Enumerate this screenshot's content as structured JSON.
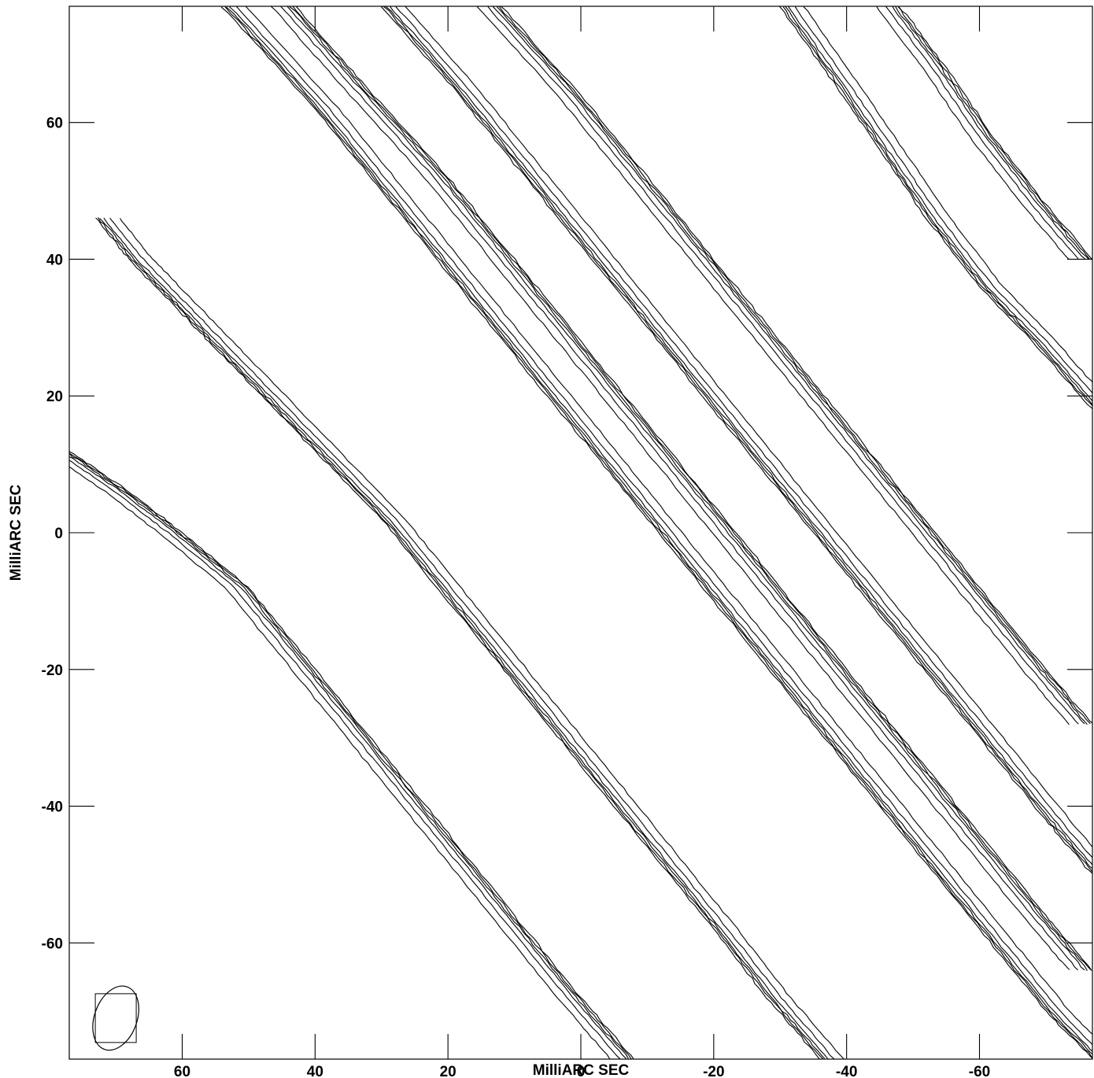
{
  "chart_data": {
    "type": "contour",
    "xlabel": "MilliARC SEC",
    "ylabel": "MilliARC SEC",
    "xlim": [
      77,
      -77
    ],
    "ylim": [
      -77,
      77
    ],
    "x_ticks": [
      60,
      40,
      20,
      0,
      -20,
      -40,
      -60
    ],
    "x_tick_labels": [
      "60",
      "40",
      "20",
      "0",
      "-20",
      "-40",
      "-60"
    ],
    "y_ticks": [
      60,
      40,
      20,
      0,
      -20,
      -40,
      -60
    ],
    "y_tick_labels": [
      "60",
      "40",
      "20",
      "0",
      "-20",
      "-40",
      "-60"
    ],
    "grid": false,
    "beam": {
      "x": 70,
      "y": -71,
      "major_axis": 5,
      "minor_axis": 3.2,
      "position_angle_deg": 20
    },
    "contour_bands": [
      {
        "name": "band-1",
        "edges": [
          [
            [
              54,
              77
            ],
            [
              40,
              62
            ],
            [
              30,
              50
            ],
            [
              20,
              38
            ],
            [
              10,
              26
            ],
            [
              0,
              14
            ],
            [
              -10,
              2
            ],
            [
              -20,
              -10
            ],
            [
              -30,
              -22
            ],
            [
              -40,
              -34
            ],
            [
              -50,
              -46
            ],
            [
              -60,
              -58
            ],
            [
              -70,
              -70
            ],
            [
              -77,
              -77
            ]
          ],
          [
            [
              43,
              77
            ],
            [
              33,
              66
            ],
            [
              20,
              52
            ],
            [
              10,
              40
            ],
            [
              0,
              28
            ],
            [
              -10,
              16
            ],
            [
              -20,
              4
            ],
            [
              -30,
              -8
            ],
            [
              -40,
              -20
            ],
            [
              -50,
              -32
            ],
            [
              -60,
              -44
            ],
            [
              -70,
              -56
            ],
            [
              -77,
              -64
            ]
          ]
        ]
      },
      {
        "name": "band-2",
        "edges": [
          [
            [
              30,
              77
            ],
            [
              20,
              66
            ],
            [
              10,
              54
            ],
            [
              0,
              42
            ],
            [
              -10,
              30
            ],
            [
              -20,
              18
            ],
            [
              -30,
              6
            ],
            [
              -40,
              -6
            ],
            [
              -50,
              -18
            ],
            [
              -60,
              -30
            ],
            [
              -70,
              -42
            ],
            [
              -77,
              -50
            ]
          ],
          [
            [
              12,
              77
            ],
            [
              0,
              64
            ],
            [
              -10,
              52
            ],
            [
              -20,
              40
            ],
            [
              -30,
              28
            ],
            [
              -40,
              16
            ],
            [
              -50,
              4
            ],
            [
              -60,
              -8
            ],
            [
              -70,
              -20
            ],
            [
              -77,
              -28
            ]
          ]
        ]
      },
      {
        "name": "band-3",
        "edges": [
          [
            [
              -30,
              77
            ],
            [
              -38,
              66
            ],
            [
              -45,
              56
            ],
            [
              -52,
              46
            ],
            [
              -60,
              36
            ],
            [
              -68,
              28
            ],
            [
              -77,
              18
            ]
          ],
          [
            [
              -48,
              77
            ],
            [
              -55,
              68
            ],
            [
              -62,
              58
            ],
            [
              -70,
              48
            ],
            [
              -77,
              40
            ]
          ]
        ]
      },
      {
        "name": "band-4",
        "edges": [
          [
            [
              73,
              46
            ],
            [
              68,
              40
            ],
            [
              62,
              34
            ],
            [
              56,
              28
            ],
            [
              48,
              20
            ],
            [
              40,
              12
            ],
            [
              30,
              2
            ],
            [
              20,
              -10
            ],
            [
              10,
              -22
            ],
            [
              0,
              -34
            ],
            [
              -10,
              -46
            ],
            [
              -20,
              -58
            ],
            [
              -28,
              -68
            ],
            [
              -36,
              -77
            ]
          ],
          [
            [
              77,
              12
            ],
            [
              68,
              6
            ],
            [
              60,
              0
            ],
            [
              50,
              -8
            ],
            [
              40,
              -20
            ],
            [
              30,
              -32
            ],
            [
              20,
              -44
            ],
            [
              10,
              -56
            ],
            [
              0,
              -68
            ],
            [
              -8,
              -77
            ]
          ]
        ]
      }
    ]
  },
  "colors": {
    "background": "#ffffff",
    "axes": "#000000",
    "contours": "#000000"
  }
}
